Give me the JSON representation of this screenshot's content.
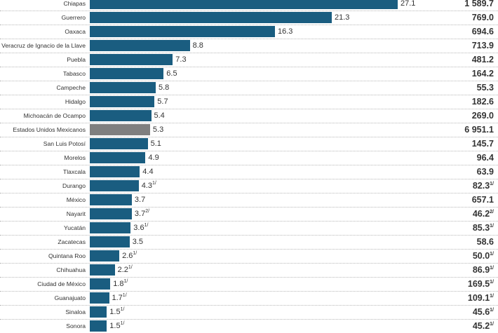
{
  "chart_data": {
    "type": "bar",
    "orientation": "horizontal",
    "categories": [
      "Chiapas",
      "Guerrero",
      "Oaxaca",
      "Veracruz de Ignacio de la Llave",
      "Puebla",
      "Tabasco",
      "Campeche",
      "Hidalgo",
      "Michoacán de Ocampo",
      "Estados Unidos Mexicanos",
      "San Luis Potosí",
      "Morelos",
      "Tlaxcala",
      "Durango",
      "México",
      "Nayarit",
      "Yucatán",
      "Zacatecas",
      "Quintana Roo",
      "Chihuahua",
      "Ciudad de México",
      "Guanajuato",
      "Sinaloa",
      "Sonora"
    ],
    "values": [
      27.1,
      21.3,
      16.3,
      8.8,
      7.3,
      6.5,
      5.8,
      5.7,
      5.4,
      5.3,
      5.1,
      4.9,
      4.4,
      4.3,
      3.7,
      3.7,
      3.6,
      3.5,
      2.6,
      2.2,
      1.8,
      1.7,
      1.5,
      1.5
    ],
    "value_labels": [
      "27.1",
      "21.3",
      "16.3",
      "8.8",
      "7.3",
      "6.5",
      "5.8",
      "5.7",
      "5.4",
      "5.3",
      "5.1",
      "4.9",
      "4.4",
      "4.3",
      "3.7",
      "3.7",
      "3.6",
      "3.5",
      "2.6",
      "2.2",
      "1.8",
      "1.7",
      "1.5",
      "1.5"
    ],
    "value_notes": [
      "",
      "",
      "",
      "",
      "",
      "",
      "",
      "",
      "",
      "",
      "",
      "",
      "",
      "1/",
      "",
      "2/",
      "1/",
      "",
      "1/",
      "1/",
      "1/",
      "1/",
      "1/",
      "1/"
    ],
    "totals": [
      "1 589.7",
      "769.0",
      "694.6",
      "713.9",
      "481.2",
      "164.2",
      "55.3",
      "182.6",
      "269.0",
      "6 951.1",
      "145.7",
      "96.4",
      "63.9",
      "82.3",
      "657.1",
      "46.2",
      "85.3",
      "58.6",
      "50.0",
      "86.9",
      "169.5",
      "109.1",
      "45.6",
      "45.2"
    ],
    "total_notes": [
      "",
      "",
      "",
      "",
      "",
      "",
      "",
      "",
      "",
      "",
      "",
      "",
      "",
      "1/",
      "",
      "2/",
      "1/",
      "",
      "1/",
      "1/",
      "1/",
      "1/",
      "1/",
      "1/"
    ],
    "highlight": "Estados Unidos Mexicanos",
    "xlim": [
      0,
      27.1
    ],
    "colors": {
      "bar": "#1a5d80",
      "highlight": "#7f7f7f"
    }
  }
}
